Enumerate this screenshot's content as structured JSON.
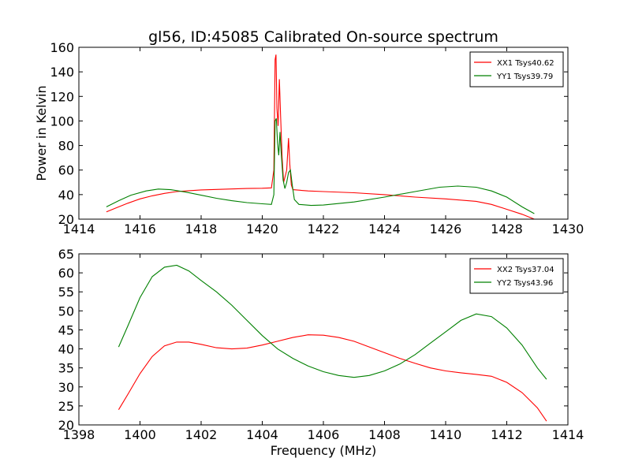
{
  "title": "gl56, ID:45085 Calibrated On-source spectrum",
  "colors": {
    "xx": "#ff0000",
    "yy": "#008000",
    "axes": "#000000",
    "background": "#ffffff"
  },
  "chart_data": [
    {
      "type": "line",
      "title": "gl56, ID:45085 Calibrated On-source spectrum",
      "xlabel": "",
      "ylabel": "Power in Kelvin",
      "xlim": [
        1414,
        1430
      ],
      "ylim": [
        20,
        160
      ],
      "xticks": [
        1414,
        1416,
        1418,
        1420,
        1422,
        1424,
        1426,
        1428,
        1430
      ],
      "yticks": [
        20,
        40,
        60,
        80,
        100,
        120,
        140,
        160
      ],
      "grid": false,
      "legend_position": "top-right",
      "series": [
        {
          "name": "XX1 Tsys40.62",
          "color": "#ff0000",
          "x": [
            1414.9,
            1415.2,
            1415.6,
            1416.0,
            1416.4,
            1416.8,
            1417.2,
            1417.6,
            1418.0,
            1418.5,
            1419.0,
            1419.5,
            1420.0,
            1420.3,
            1420.38,
            1420.42,
            1420.45,
            1420.48,
            1420.52,
            1420.56,
            1420.6,
            1420.65,
            1420.7,
            1420.75,
            1420.8,
            1420.86,
            1420.9,
            1420.95,
            1421.0,
            1421.5,
            1422.0,
            1423.0,
            1424.0,
            1425.0,
            1426.0,
            1427.0,
            1427.5,
            1428.0,
            1428.5,
            1428.9
          ],
          "values": [
            26,
            29,
            33,
            36.5,
            39,
            41,
            42.5,
            43.2,
            43.8,
            44.2,
            44.6,
            45,
            45.2,
            45.5,
            60,
            150,
            154,
            110,
            96,
            134,
            105,
            70,
            50,
            55,
            60,
            86,
            65,
            48,
            44,
            43,
            42.5,
            41.5,
            40,
            38,
            36.5,
            34.5,
            32,
            28,
            24,
            20
          ]
        },
        {
          "name": "YY1 Tsys39.79",
          "color": "#008000",
          "x": [
            1414.9,
            1415.3,
            1415.7,
            1416.2,
            1416.6,
            1417.0,
            1417.5,
            1418.0,
            1418.5,
            1419.0,
            1419.5,
            1420.0,
            1420.3,
            1420.38,
            1420.42,
            1420.46,
            1420.5,
            1420.54,
            1420.58,
            1420.62,
            1420.68,
            1420.74,
            1420.8,
            1420.86,
            1420.92,
            1420.98,
            1421.05,
            1421.2,
            1421.6,
            1422.0,
            1423.0,
            1424.0,
            1425.0,
            1425.8,
            1426.4,
            1427.0,
            1427.5,
            1428.0,
            1428.5,
            1428.9
          ],
          "values": [
            30,
            35,
            39.5,
            43,
            44.5,
            44,
            42,
            39.5,
            37,
            35,
            33.5,
            32.5,
            32,
            40,
            100,
            102,
            82,
            72,
            91,
            74,
            52,
            45,
            50,
            58,
            60,
            48,
            36,
            32,
            31.2,
            31.5,
            34,
            38,
            42.5,
            46,
            47,
            46,
            43,
            38,
            30,
            24.5
          ]
        }
      ]
    },
    {
      "type": "line",
      "title": "",
      "xlabel": "Frequency (MHz)",
      "ylabel": "",
      "xlim": [
        1398,
        1414
      ],
      "ylim": [
        20,
        65
      ],
      "xticks": [
        1398,
        1400,
        1402,
        1404,
        1406,
        1408,
        1410,
        1412,
        1414
      ],
      "yticks": [
        20,
        25,
        30,
        35,
        40,
        45,
        50,
        55,
        60,
        65
      ],
      "grid": false,
      "legend_position": "top-right",
      "series": [
        {
          "name": "XX2 Tsys37.04",
          "color": "#ff0000",
          "x": [
            1399.3,
            1399.6,
            1400.0,
            1400.4,
            1400.8,
            1401.2,
            1401.6,
            1402.0,
            1402.5,
            1403.0,
            1403.5,
            1404.0,
            1404.5,
            1405.0,
            1405.5,
            1406.0,
            1406.5,
            1407.0,
            1407.5,
            1408.0,
            1408.5,
            1409.0,
            1409.5,
            1410.0,
            1410.5,
            1411.0,
            1411.5,
            1412.0,
            1412.5,
            1413.0,
            1413.3
          ],
          "values": [
            24,
            28,
            33.5,
            38,
            40.8,
            41.8,
            41.8,
            41.2,
            40.3,
            40,
            40.2,
            41,
            42,
            43,
            43.7,
            43.6,
            43,
            42,
            40.5,
            39,
            37.5,
            36.2,
            35,
            34.2,
            33.7,
            33.3,
            32.8,
            31.2,
            28.5,
            24.5,
            21
          ]
        },
        {
          "name": "YY2 Tsys43.96",
          "color": "#008000",
          "x": [
            1399.3,
            1399.6,
            1400.0,
            1400.4,
            1400.8,
            1401.2,
            1401.6,
            1402.0,
            1402.5,
            1403.0,
            1403.5,
            1404.0,
            1404.5,
            1405.0,
            1405.5,
            1406.0,
            1406.5,
            1407.0,
            1407.5,
            1408.0,
            1408.5,
            1409.0,
            1409.5,
            1410.0,
            1410.5,
            1411.0,
            1411.5,
            1412.0,
            1412.5,
            1413.0,
            1413.3
          ],
          "values": [
            40.5,
            46,
            53.5,
            59,
            61.5,
            62,
            60.5,
            58,
            55,
            51.5,
            47.5,
            43.5,
            40,
            37.5,
            35.5,
            34,
            33,
            32.5,
            33,
            34.2,
            36,
            38.5,
            41.5,
            44.5,
            47.5,
            49.2,
            48.5,
            45.5,
            41,
            35,
            32
          ]
        }
      ]
    }
  ]
}
